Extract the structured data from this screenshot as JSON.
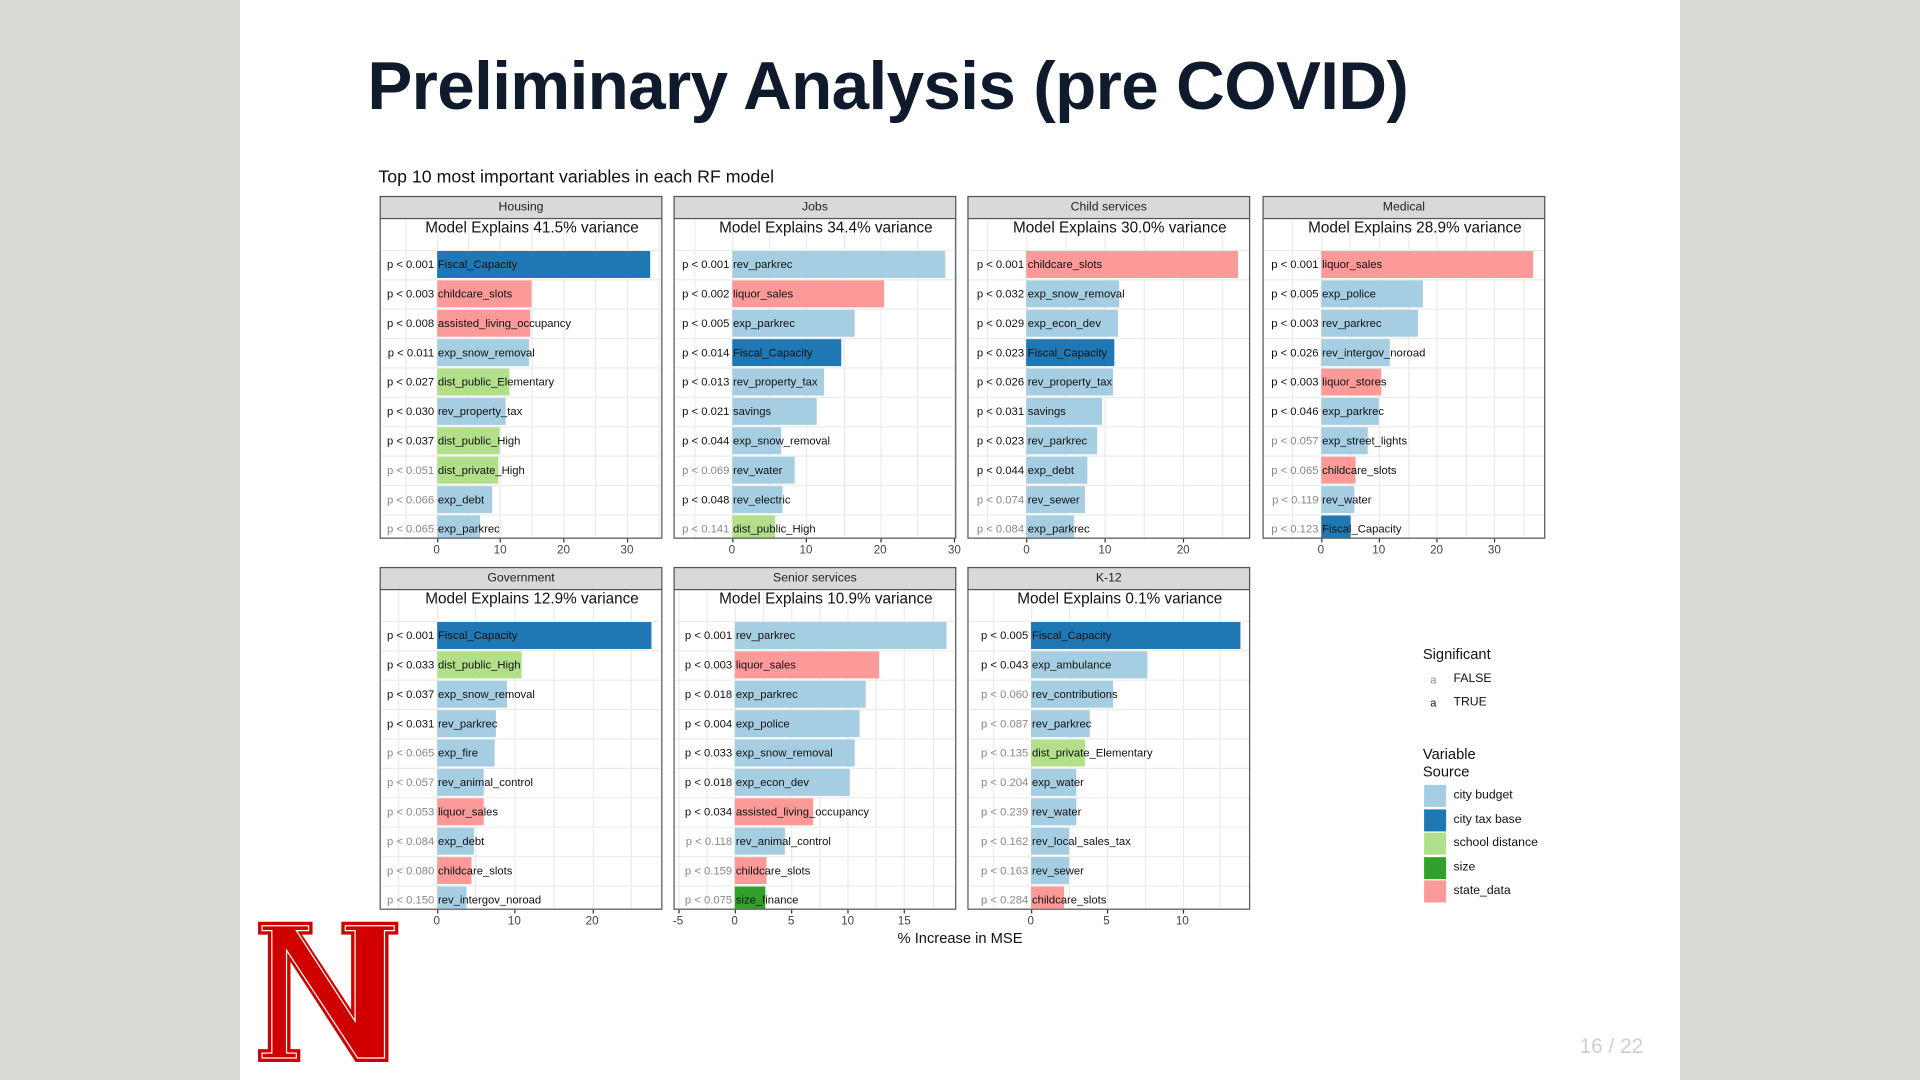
{
  "slide": {
    "title": "Preliminary Analysis (pre COVID)",
    "page_number": "16 / 22"
  },
  "colors": {
    "city budget": "#a6cee3",
    "city tax base": "#1f78b4",
    "school distance": "#b2df8a",
    "size": "#33a02c",
    "state_data": "#fb9a99",
    "significant_true": "#111111",
    "significant_false": "#888888",
    "logo_red": "#d00000"
  },
  "chart_data": {
    "type": "bar",
    "title": "Top 10 most important variables in each RF model",
    "xlabel": "% Increase in MSE",
    "orientation": "horizontal",
    "grid": true,
    "legend_position": "right",
    "legend": {
      "significant_title": "Significant",
      "significant_items": [
        {
          "symbol": "a",
          "label": "FALSE"
        },
        {
          "symbol": "a",
          "label": "TRUE"
        }
      ],
      "source_title_line1": "Variable",
      "source_title_line2": "Source",
      "source_items": [
        "city budget",
        "city tax base",
        "school distance",
        "size",
        "state_data"
      ]
    },
    "panels": [
      {
        "name": "Housing",
        "subtitle": "Model Explains 41.5% variance",
        "xlim": [
          -8.8,
          35.4
        ],
        "ticks": [
          0,
          10,
          20,
          30
        ],
        "bars": [
          {
            "variable": "Fiscal_Capacity",
            "value": 33.7,
            "p": "p < 0.001",
            "significant": true,
            "source": "city tax base"
          },
          {
            "variable": "childcare_slots",
            "value": 15.0,
            "p": "p < 0.003",
            "significant": true,
            "source": "state_data"
          },
          {
            "variable": "assisted_living_occupancy",
            "value": 14.8,
            "p": "p < 0.008",
            "significant": true,
            "source": "state_data"
          },
          {
            "variable": "exp_snow_removal",
            "value": 14.6,
            "p": "p < 0.011",
            "significant": true,
            "source": "city budget"
          },
          {
            "variable": "dist_public_Elementary",
            "value": 11.5,
            "p": "p < 0.027",
            "significant": true,
            "source": "school distance"
          },
          {
            "variable": "rev_property_tax",
            "value": 10.8,
            "p": "p < 0.030",
            "significant": true,
            "source": "city budget"
          },
          {
            "variable": "dist_public_High",
            "value": 10.0,
            "p": "p < 0.037",
            "significant": true,
            "source": "school distance"
          },
          {
            "variable": "dist_private_High",
            "value": 9.8,
            "p": "p < 0.051",
            "significant": false,
            "source": "school distance"
          },
          {
            "variable": "exp_debt",
            "value": 8.7,
            "p": "p < 0.066",
            "significant": false,
            "source": "city budget"
          },
          {
            "variable": "exp_parkrec",
            "value": 6.9,
            "p": "p < 0.065",
            "significant": false,
            "source": "city budget"
          }
        ]
      },
      {
        "name": "Jobs",
        "subtitle": "Model Explains 34.4% variance",
        "xlim": [
          -7.7,
          30.1
        ],
        "ticks": [
          0,
          10,
          20,
          30
        ],
        "bars": [
          {
            "variable": "rev_parkrec",
            "value": 28.8,
            "p": "p < 0.001",
            "significant": true,
            "source": "city budget"
          },
          {
            "variable": "liquor_sales",
            "value": 20.6,
            "p": "p < 0.002",
            "significant": true,
            "source": "state_data"
          },
          {
            "variable": "exp_parkrec",
            "value": 16.5,
            "p": "p < 0.005",
            "significant": true,
            "source": "city budget"
          },
          {
            "variable": "Fiscal_Capacity",
            "value": 14.8,
            "p": "p < 0.014",
            "significant": true,
            "source": "city tax base"
          },
          {
            "variable": "rev_property_tax",
            "value": 12.4,
            "p": "p < 0.013",
            "significant": true,
            "source": "city budget"
          },
          {
            "variable": "savings",
            "value": 11.5,
            "p": "p < 0.021",
            "significant": true,
            "source": "city budget"
          },
          {
            "variable": "exp_snow_removal",
            "value": 6.6,
            "p": "p < 0.044",
            "significant": true,
            "source": "city budget"
          },
          {
            "variable": "rev_water",
            "value": 8.4,
            "p": "p < 0.069",
            "significant": false,
            "source": "city budget"
          },
          {
            "variable": "rev_electric",
            "value": 6.9,
            "p": "p < 0.048",
            "significant": true,
            "source": "city budget"
          },
          {
            "variable": "dist_public_High",
            "value": 5.8,
            "p": "p < 0.141",
            "significant": false,
            "source": "school distance"
          }
        ]
      },
      {
        "name": "Child services",
        "subtitle": "Model Explains 30.0% variance",
        "xlim": [
          -7.4,
          28.4
        ],
        "ticks": [
          0,
          10,
          20
        ],
        "bars": [
          {
            "variable": "childcare_slots",
            "value": 27.0,
            "p": "p < 0.001",
            "significant": true,
            "source": "state_data"
          },
          {
            "variable": "exp_snow_removal",
            "value": 11.9,
            "p": "p < 0.032",
            "significant": true,
            "source": "city budget"
          },
          {
            "variable": "exp_econ_dev",
            "value": 11.6,
            "p": "p < 0.029",
            "significant": true,
            "source": "city budget"
          },
          {
            "variable": "Fiscal_Capacity",
            "value": 11.2,
            "p": "p < 0.023",
            "significant": true,
            "source": "city tax base"
          },
          {
            "variable": "rev_property_tax",
            "value": 11.1,
            "p": "p < 0.026",
            "significant": true,
            "source": "city budget"
          },
          {
            "variable": "savings",
            "value": 9.6,
            "p": "p < 0.031",
            "significant": true,
            "source": "city budget"
          },
          {
            "variable": "rev_parkrec",
            "value": 9.0,
            "p": "p < 0.023",
            "significant": true,
            "source": "city budget"
          },
          {
            "variable": "exp_debt",
            "value": 7.8,
            "p": "p < 0.044",
            "significant": true,
            "source": "city budget"
          },
          {
            "variable": "rev_sewer",
            "value": 7.4,
            "p": "p < 0.074",
            "significant": false,
            "source": "city budget"
          },
          {
            "variable": "exp_parkrec",
            "value": 6.0,
            "p": "p < 0.084",
            "significant": false,
            "source": "city budget"
          }
        ]
      },
      {
        "name": "Medical",
        "subtitle": "Model Explains 28.9% variance",
        "xlim": [
          -9.9,
          38.6
        ],
        "ticks": [
          0,
          10,
          20,
          30
        ],
        "bars": [
          {
            "variable": "liquor_sales",
            "value": 36.7,
            "p": "p < 0.001",
            "significant": true,
            "source": "state_data"
          },
          {
            "variable": "exp_police",
            "value": 17.6,
            "p": "p < 0.005",
            "significant": true,
            "source": "city budget"
          },
          {
            "variable": "rev_parkrec",
            "value": 16.8,
            "p": "p < 0.003",
            "significant": true,
            "source": "city budget"
          },
          {
            "variable": "rev_intergov_noroad",
            "value": 12.0,
            "p": "p < 0.026",
            "significant": true,
            "source": "city budget"
          },
          {
            "variable": "liquor_stores",
            "value": 10.5,
            "p": "p < 0.003",
            "significant": true,
            "source": "state_data"
          },
          {
            "variable": "exp_parkrec",
            "value": 10.0,
            "p": "p < 0.046",
            "significant": true,
            "source": "city budget"
          },
          {
            "variable": "exp_street_lights",
            "value": 8.0,
            "p": "p < 0.057",
            "significant": false,
            "source": "city budget"
          },
          {
            "variable": "childcare_slots",
            "value": 5.9,
            "p": "p < 0.065",
            "significant": false,
            "source": "state_data"
          },
          {
            "variable": "rev_water",
            "value": 5.7,
            "p": "p < 0.119",
            "significant": false,
            "source": "city budget"
          },
          {
            "variable": "Fiscal_Capacity",
            "value": 5.2,
            "p": "p < 0.123",
            "significant": false,
            "source": "city tax base"
          }
        ]
      },
      {
        "name": "Government",
        "subtitle": "Model Explains 12.9% variance",
        "xlim": [
          -7.2,
          28.9
        ],
        "ticks": [
          0,
          10,
          20
        ],
        "bars": [
          {
            "variable": "Fiscal_Capacity",
            "value": 27.6,
            "p": "p < 0.001",
            "significant": true,
            "source": "city tax base"
          },
          {
            "variable": "dist_public_High",
            "value": 11.0,
            "p": "p < 0.033",
            "significant": true,
            "source": "school distance"
          },
          {
            "variable": "exp_snow_removal",
            "value": 9.0,
            "p": "p < 0.037",
            "significant": true,
            "source": "city budget"
          },
          {
            "variable": "rev_parkrec",
            "value": 7.6,
            "p": "p < 0.031",
            "significant": true,
            "source": "city budget"
          },
          {
            "variable": "exp_fire",
            "value": 7.4,
            "p": "p < 0.065",
            "significant": false,
            "source": "city budget"
          },
          {
            "variable": "rev_animal_control",
            "value": 6.1,
            "p": "p < 0.057",
            "significant": false,
            "source": "city budget"
          },
          {
            "variable": "liquor_sales",
            "value": 6.0,
            "p": "p < 0.053",
            "significant": false,
            "source": "state_data"
          },
          {
            "variable": "exp_debt",
            "value": 4.8,
            "p": "p < 0.084",
            "significant": false,
            "source": "city budget"
          },
          {
            "variable": "childcare_slots",
            "value": 4.5,
            "p": "p < 0.080",
            "significant": false,
            "source": "state_data"
          },
          {
            "variable": "rev_intergov_noroad",
            "value": 3.9,
            "p": "p < 0.150",
            "significant": false,
            "source": "city budget"
          }
        ]
      },
      {
        "name": "Senior services",
        "subtitle": "Model Explains 10.9% variance",
        "xlim": [
          -5.3,
          19.5
        ],
        "ticks": [
          -5,
          0,
          5,
          10,
          15
        ],
        "bars": [
          {
            "variable": "rev_parkrec",
            "value": 18.7,
            "p": "p < 0.001",
            "significant": true,
            "source": "city budget"
          },
          {
            "variable": "liquor_sales",
            "value": 12.8,
            "p": "p < 0.003",
            "significant": true,
            "source": "state_data"
          },
          {
            "variable": "exp_parkrec",
            "value": 11.6,
            "p": "p < 0.018",
            "significant": true,
            "source": "city budget"
          },
          {
            "variable": "exp_police",
            "value": 11.1,
            "p": "p < 0.004",
            "significant": true,
            "source": "city budget"
          },
          {
            "variable": "exp_snow_removal",
            "value": 10.6,
            "p": "p < 0.033",
            "significant": true,
            "source": "city budget"
          },
          {
            "variable": "exp_econ_dev",
            "value": 10.2,
            "p": "p < 0.018",
            "significant": true,
            "source": "city budget"
          },
          {
            "variable": "assisted_living_occupancy",
            "value": 6.9,
            "p": "p < 0.034",
            "significant": true,
            "source": "state_data"
          },
          {
            "variable": "rev_animal_control",
            "value": 4.4,
            "p": "p < 0.118",
            "significant": false,
            "source": "city budget"
          },
          {
            "variable": "childcare_slots",
            "value": 2.8,
            "p": "p < 0.159",
            "significant": false,
            "source": "state_data"
          },
          {
            "variable": "size_finance",
            "value": 2.7,
            "p": "p < 0.075",
            "significant": false,
            "source": "size"
          }
        ]
      },
      {
        "name": "K-12",
        "subtitle": "Model Explains 0.1% variance",
        "xlim": [
          -4.1,
          14.4
        ],
        "ticks": [
          0,
          5,
          10
        ],
        "bars": [
          {
            "variable": "Fiscal_Capacity",
            "value": 13.8,
            "p": "p < 0.005",
            "significant": true,
            "source": "city tax base"
          },
          {
            "variable": "exp_ambulance",
            "value": 7.7,
            "p": "p < 0.043",
            "significant": true,
            "source": "city budget"
          },
          {
            "variable": "rev_contributions",
            "value": 5.4,
            "p": "p < 0.060",
            "significant": false,
            "source": "city budget"
          },
          {
            "variable": "rev_parkrec",
            "value": 3.9,
            "p": "p < 0.087",
            "significant": false,
            "source": "city budget"
          },
          {
            "variable": "dist_private_Elementary",
            "value": 3.6,
            "p": "p < 0.135",
            "significant": false,
            "source": "school distance"
          },
          {
            "variable": "exp_water",
            "value": 3.0,
            "p": "p < 0.204",
            "significant": false,
            "source": "city budget"
          },
          {
            "variable": "rev_water",
            "value": 3.0,
            "p": "p < 0.239",
            "significant": false,
            "source": "city budget"
          },
          {
            "variable": "rev_local_sales_tax",
            "value": 2.5,
            "p": "p < 0.162",
            "significant": false,
            "source": "city budget"
          },
          {
            "variable": "rev_sewer",
            "value": 2.5,
            "p": "p < 0.163",
            "significant": false,
            "source": "city budget"
          },
          {
            "variable": "childcare_slots",
            "value": 2.2,
            "p": "p < 0.284",
            "significant": false,
            "source": "state_data"
          }
        ]
      }
    ]
  }
}
